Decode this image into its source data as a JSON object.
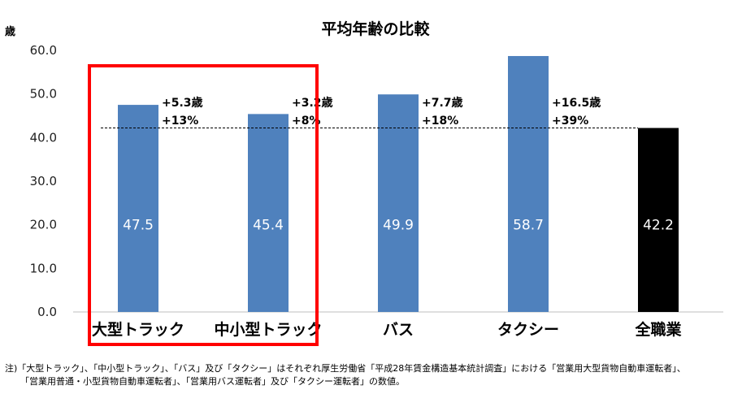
{
  "chart_data": {
    "type": "bar",
    "title": "平均年齢の比較",
    "ylabel": "歳",
    "ylim": [
      0,
      60
    ],
    "yticks": [
      "0.0",
      "10.0",
      "20.0",
      "30.0",
      "40.0",
      "50.0",
      "60.0"
    ],
    "categories": [
      "大型トラック",
      "中小型トラック",
      "バス",
      "タクシー",
      "全職業"
    ],
    "values": [
      47.5,
      45.4,
      49.9,
      58.7,
      42.2
    ],
    "value_labels": [
      "47.5",
      "45.4",
      "49.9",
      "58.7",
      "42.2"
    ],
    "diff_labels": [
      [
        "+5.3歳",
        "+13%"
      ],
      [
        "+3.2歳",
        "+8%"
      ],
      [
        "+7.7歳",
        "+18%"
      ],
      [
        "+16.5歳",
        "+39%"
      ]
    ],
    "reference_line": 42.2,
    "highlighted_categories": [
      "大型トラック",
      "中小型トラック"
    ],
    "colors": {
      "bar": "#4f81bd",
      "bar_all_occupations": "#000000",
      "highlight_frame": "#ff0000",
      "reference_line": "#000000"
    },
    "grid": false
  },
  "note": {
    "line1": "注)「大型トラック」、「中小型トラック」、「バス」及び「タクシー」はそれぞれ厚生労働省「平成28年賃金構造基本統計調査」における「営業用大型貨物自動車運転者」、",
    "line2": "「営業用普通・小型貨物自動車運転者」、「営業用バス運転者」及び「タクシー運転者」の数値。"
  }
}
